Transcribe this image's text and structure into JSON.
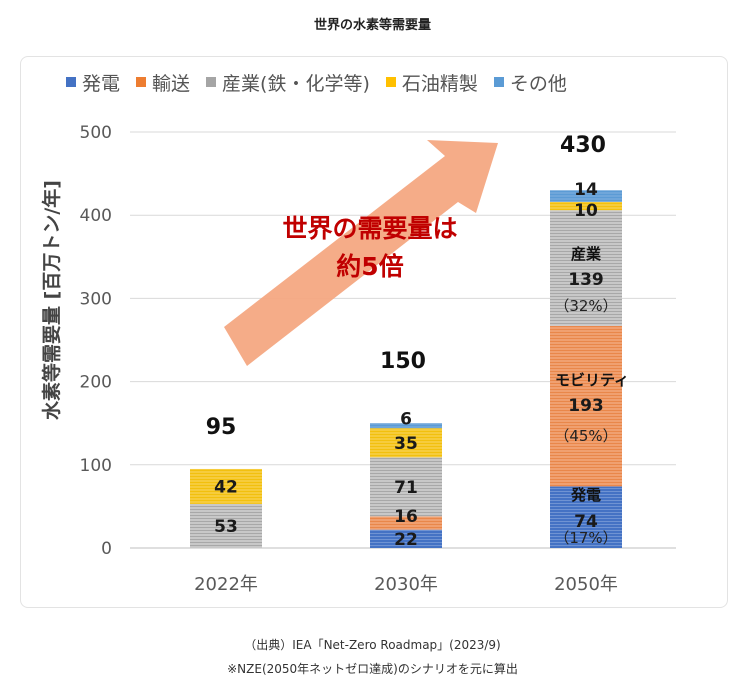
{
  "chart_data": {
    "type": "bar",
    "stacked": true,
    "title": "世界の水素等需要量",
    "ylabel": "水素等需要量 [百万トン/年]",
    "xlabel": "",
    "ylim": [
      0,
      500
    ],
    "yticks": [
      "0",
      "100",
      "200",
      "300",
      "400",
      "500"
    ],
    "categories": [
      "2022年",
      "2030年",
      "2050年"
    ],
    "series": [
      {
        "name": "発電",
        "color": "#4472c4",
        "values": [
          0,
          22,
          74
        ]
      },
      {
        "name": "輸送",
        "color": "#ed7d31",
        "values": [
          0,
          16,
          193
        ]
      },
      {
        "name": "産業(鉄・化学等)",
        "color": "#a5a5a5",
        "values": [
          53,
          71,
          139
        ]
      },
      {
        "name": "石油精製",
        "color": "#ffc000",
        "values": [
          42,
          35,
          10
        ]
      },
      {
        "name": "その他",
        "color": "#5b9bd5",
        "values": [
          0,
          6,
          14
        ]
      }
    ],
    "totals": [
      "95",
      "150",
      "430"
    ],
    "segment_labels": [
      [
        "",
        "",
        "53",
        "42",
        ""
      ],
      [
        "22",
        "16",
        "71",
        "35",
        "6"
      ],
      [
        "74",
        "193",
        "139",
        "10",
        "14"
      ]
    ],
    "annotations": {
      "headline_line1": "世界の需要量は",
      "headline_line2": "約5倍",
      "hatsuden_label": "発電",
      "hatsuden_pct": "（17%）",
      "mobility_label": "モビリティ",
      "mobility_pct": "（45%）",
      "sangyo_label": "産業",
      "sangyo_pct": "（32%）"
    },
    "legend_position": "top"
  },
  "footer": {
    "source": "（出典）IEA「Net-Zero Roadmap」(2023/9)",
    "note": "※NZE(2050年ネットゼロ達成)のシナリオを元に算出"
  }
}
